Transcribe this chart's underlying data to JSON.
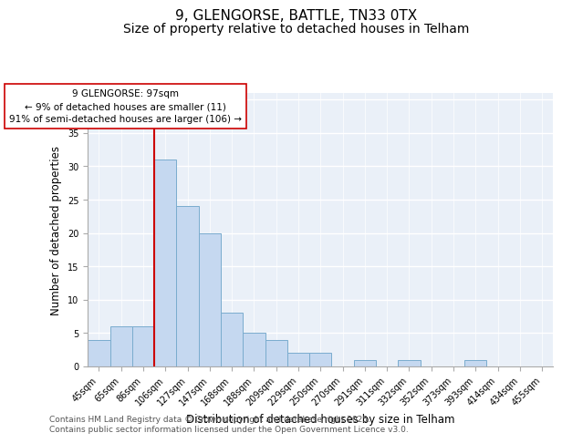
{
  "title_line1": "9, GLENGORSE, BATTLE, TN33 0TX",
  "title_line2": "Size of property relative to detached houses in Telham",
  "xlabel": "Distribution of detached houses by size in Telham",
  "ylabel": "Number of detached properties",
  "categories": [
    "45sqm",
    "65sqm",
    "86sqm",
    "106sqm",
    "127sqm",
    "147sqm",
    "168sqm",
    "188sqm",
    "209sqm",
    "229sqm",
    "250sqm",
    "270sqm",
    "291sqm",
    "311sqm",
    "332sqm",
    "352sqm",
    "373sqm",
    "393sqm",
    "414sqm",
    "434sqm",
    "455sqm"
  ],
  "values": [
    4,
    6,
    6,
    31,
    24,
    20,
    8,
    5,
    4,
    2,
    2,
    0,
    1,
    0,
    1,
    0,
    0,
    1,
    0,
    0,
    0
  ],
  "bar_color": "#c5d8f0",
  "bar_edge_color": "#7aacce",
  "red_line_x": 2.5,
  "annotation_title": "9 GLENGORSE: 97sqm",
  "annotation_line2": "← 9% of detached houses are smaller (11)",
  "annotation_line3": "91% of semi-detached houses are larger (106) →",
  "annotation_box_color": "#ffffff",
  "annotation_box_edge": "#cc0000",
  "red_line_color": "#cc0000",
  "ylim": [
    0,
    41
  ],
  "yticks": [
    0,
    5,
    10,
    15,
    20,
    25,
    30,
    35,
    40
  ],
  "footnote1": "Contains HM Land Registry data © Crown copyright and database right 2025.",
  "footnote2": "Contains public sector information licensed under the Open Government Licence v3.0.",
  "bg_color": "#eaf0f8",
  "grid_color": "#ffffff",
  "title_fontsize": 11,
  "subtitle_fontsize": 10,
  "axis_label_fontsize": 8.5,
  "tick_fontsize": 7,
  "annotation_fontsize": 7.5,
  "footnote_fontsize": 6.5
}
